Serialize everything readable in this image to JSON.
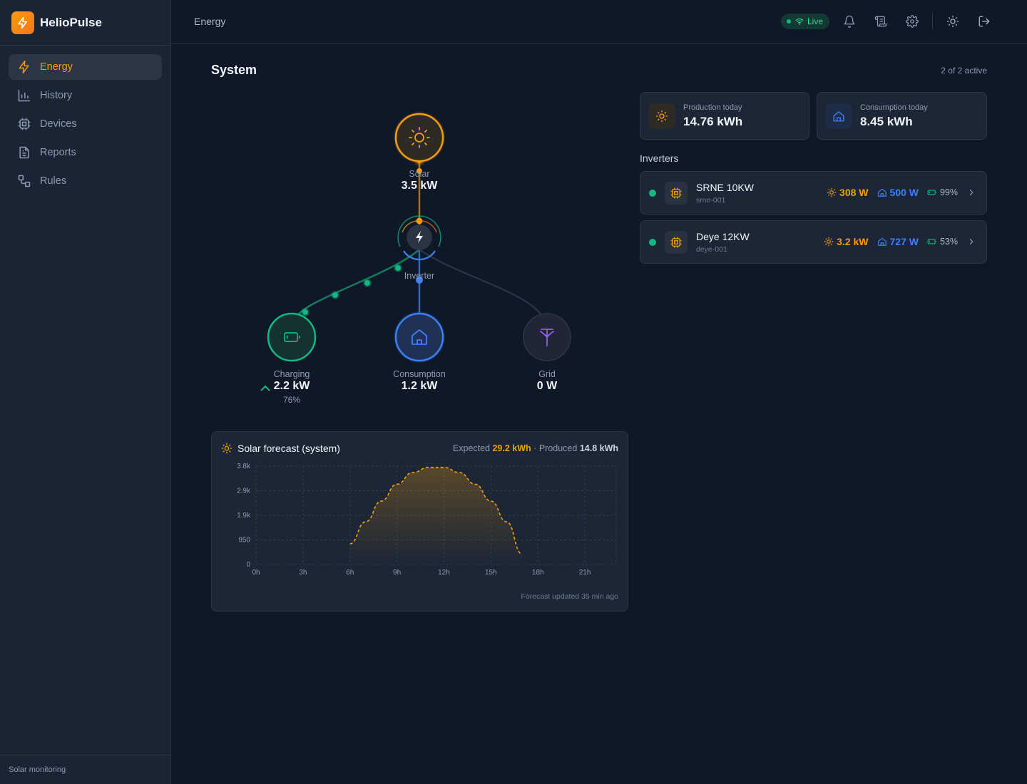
{
  "app": {
    "name": "HelioPulse",
    "footer": "Solar monitoring"
  },
  "sidebar": {
    "items": [
      {
        "label": "Energy",
        "icon": "bolt-icon",
        "active": true
      },
      {
        "label": "History",
        "icon": "bar-chart-icon"
      },
      {
        "label": "Devices",
        "icon": "chip-icon"
      },
      {
        "label": "Reports",
        "icon": "document-icon"
      },
      {
        "label": "Rules",
        "icon": "workflow-icon"
      }
    ]
  },
  "header": {
    "crumb": "Energy",
    "live_label": "Live"
  },
  "system": {
    "title": "System",
    "active_count": "2 of 2 active"
  },
  "flow": {
    "solar": {
      "label": "Solar",
      "value": "3.5 kW"
    },
    "inverter": {
      "label": "Inverter"
    },
    "battery": {
      "label": "Charging",
      "value": "2.2 kW",
      "soc": "76%"
    },
    "consumption": {
      "label": "Consumption",
      "value": "1.2 kW"
    },
    "grid": {
      "label": "Grid",
      "value": "0 W"
    }
  },
  "stats": {
    "production": {
      "label": "Production today",
      "value": "14.76 kWh"
    },
    "consumption": {
      "label": "Consumption today",
      "value": "8.45 kWh"
    }
  },
  "inverters": {
    "title": "Inverters",
    "items": [
      {
        "name": "SRNE 10KW",
        "id": "srne-001",
        "solar": "308 W",
        "load": "500 W",
        "battery": "99%"
      },
      {
        "name": "Deye 12KW",
        "id": "deye-001",
        "solar": "3.2 kW",
        "load": "727 W",
        "battery": "53%"
      }
    ]
  },
  "forecast": {
    "title": "Solar forecast (system)",
    "expected_label": "Expected",
    "expected_value": "29.2 kWh",
    "separator": "·",
    "produced_label": "Produced",
    "produced_value": "14.8 kWh",
    "updated": "Forecast updated 35 min ago"
  },
  "chart_data": {
    "type": "area",
    "x_ticks": [
      "0h",
      "3h",
      "6h",
      "9h",
      "12h",
      "15h",
      "18h",
      "21h"
    ],
    "y_ticks": [
      "0",
      "950",
      "1.9k",
      "2.9k",
      "3.8k"
    ],
    "ylim": [
      0,
      3800
    ],
    "xlim": [
      0,
      23
    ],
    "grid": true,
    "series": [
      {
        "style": "dashed",
        "color": "#f59e0b",
        "x": [
          6,
          7,
          8,
          9,
          10,
          11,
          12,
          13,
          14,
          15,
          16,
          17
        ],
        "y": [
          800,
          1650,
          2450,
          3100,
          3550,
          3750,
          3750,
          3550,
          3100,
          2450,
          1650,
          400
        ]
      }
    ]
  },
  "colors": {
    "accent": "#f59e0b",
    "battery": "#10b981",
    "load": "#3b82f6",
    "grid": "#8b5cf6"
  }
}
